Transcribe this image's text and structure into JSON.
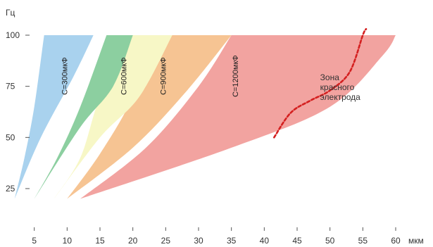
{
  "chart_data": {
    "type": "area",
    "xlabel": "мкм",
    "ylabel": "Гц",
    "xlim": [
      0,
      63
    ],
    "ylim": [
      0,
      105
    ],
    "x_ticks": [
      5,
      10,
      15,
      20,
      25,
      30,
      35,
      40,
      45,
      50,
      55,
      60
    ],
    "y_ticks": [
      25,
      50,
      75,
      100
    ],
    "grid": false,
    "series": [
      {
        "name": "C=300мкФ",
        "color": "#a9d2ee",
        "left_edge": [
          [
            2,
            20
          ],
          [
            3.5,
            40
          ],
          [
            5,
            65
          ],
          [
            6.5,
            100
          ]
        ],
        "right_edge": [
          [
            2,
            20
          ],
          [
            6,
            50
          ],
          [
            11,
            80
          ],
          [
            14,
            100
          ]
        ],
        "label_at": [
          10,
          80
        ]
      },
      {
        "name": "C=600мкФ",
        "color": "#8ccfa0",
        "left_edge": [
          [
            5,
            20
          ],
          [
            8.5,
            40
          ],
          [
            12,
            65
          ],
          [
            16,
            100
          ]
        ],
        "right_edge": [
          [
            5,
            20
          ],
          [
            12,
            55
          ],
          [
            17,
            75
          ],
          [
            20,
            100
          ]
        ],
        "label_at": [
          19,
          80
        ]
      },
      {
        "name": "C=900мкФ",
        "color": "#f7f7c6",
        "left_edge": [
          [
            8,
            20
          ],
          [
            12,
            40
          ],
          [
            15,
            70
          ],
          [
            19.5,
            100
          ]
        ],
        "right_edge": [
          [
            8,
            20
          ],
          [
            15,
            50
          ],
          [
            21,
            70
          ],
          [
            26,
            100
          ]
        ],
        "label_at": [
          25,
          80
        ]
      },
      {
        "name": "",
        "color": "#f6c493",
        "left_edge": [
          [
            10,
            20
          ],
          [
            15,
            42
          ],
          [
            20,
            70
          ],
          [
            23,
            100
          ]
        ],
        "right_edge": [
          [
            10,
            20
          ],
          [
            20,
            45
          ],
          [
            28,
            72
          ],
          [
            35,
            100
          ]
        ],
        "label_at": null
      },
      {
        "name": "C=1200мкФ",
        "color": "#f2a3a0",
        "left_edge": [
          [
            12,
            20
          ],
          [
            22,
            45
          ],
          [
            30,
            75
          ],
          [
            35,
            100
          ]
        ],
        "right_edge": [
          [
            12,
            20
          ],
          [
            35,
            45
          ],
          [
            50,
            65
          ],
          [
            58,
            90
          ],
          [
            60,
            100
          ]
        ],
        "label_at": [
          36,
          80
        ]
      }
    ],
    "red_electrode_curve": {
      "color": "#d42020",
      "points": [
        [
          41.5,
          50
        ],
        [
          44,
          62
        ],
        [
          47,
          68
        ],
        [
          50,
          73
        ],
        [
          53,
          82
        ],
        [
          55,
          100
        ],
        [
          55.5,
          103
        ]
      ]
    },
    "annotations": [
      {
        "lines": [
          "Зона",
          "красного",
          "электрода"
        ],
        "at": [
          48.5,
          78
        ]
      }
    ]
  }
}
